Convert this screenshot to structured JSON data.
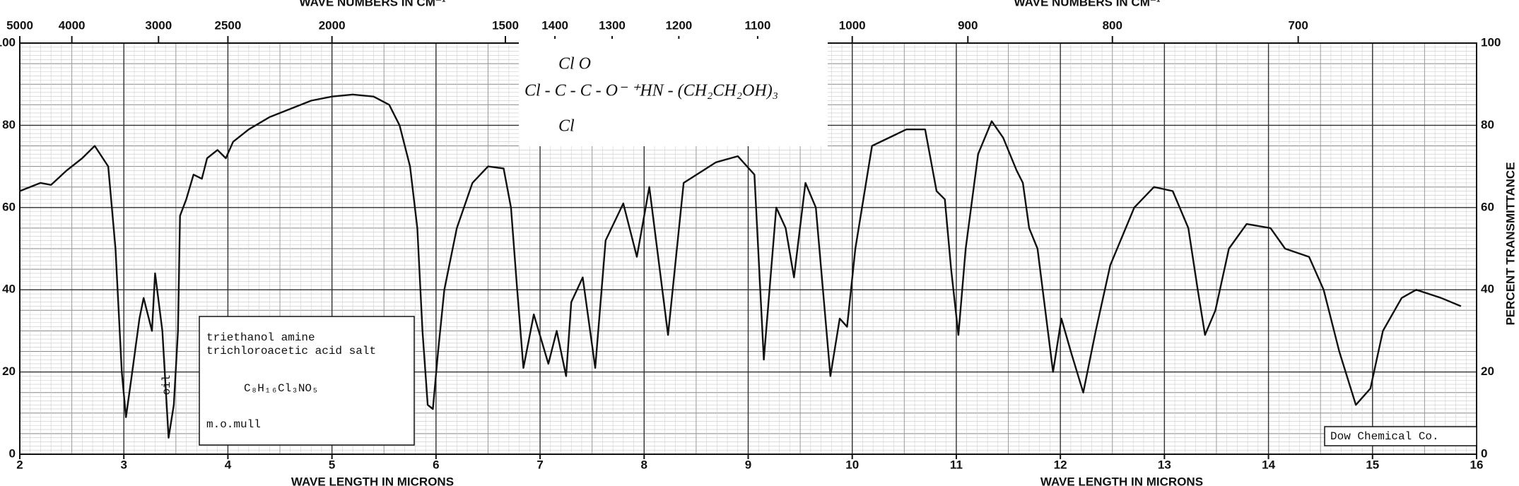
{
  "chart_data": {
    "type": "line",
    "x_label": "WAVE LENGTH IN MICRONS",
    "x2_label": "WAVE NUMBERS IN CM⁻¹",
    "y_label": "PERCENT TRANSMITTANCE",
    "xlim": [
      2,
      16
    ],
    "ylim": [
      0,
      100
    ],
    "xticks": [
      2,
      3,
      4,
      5,
      6,
      7,
      8,
      9,
      10,
      11,
      12,
      13,
      14,
      15,
      16
    ],
    "yticks": [
      0,
      20,
      40,
      60,
      80,
      100
    ],
    "x2ticks": [
      5000,
      4000,
      3000,
      2500,
      2000,
      1500,
      1400,
      1300,
      1200,
      1100,
      1000,
      900,
      800,
      700
    ],
    "grid": true,
    "color": "#111111",
    "x": [
      2.0,
      2.2,
      2.3,
      2.45,
      2.6,
      2.72,
      2.85,
      2.92,
      2.98,
      3.02,
      3.07,
      3.15,
      3.19,
      3.27,
      3.3,
      3.37,
      3.43,
      3.48,
      3.52,
      3.54,
      3.6,
      3.67,
      3.75,
      3.8,
      3.9,
      3.98,
      4.05,
      4.2,
      4.4,
      4.6,
      4.8,
      5.0,
      5.2,
      5.4,
      5.55,
      5.65,
      5.75,
      5.82,
      5.87,
      5.92,
      5.97,
      6.02,
      6.08,
      6.2,
      6.35,
      6.5,
      6.65,
      6.72,
      6.78,
      6.84,
      6.94,
      7.08,
      7.16,
      7.25,
      7.3,
      7.41,
      7.53,
      7.63,
      7.8,
      7.93,
      8.05,
      8.23,
      8.38,
      8.69,
      8.9,
      9.06,
      9.15,
      9.27,
      9.36,
      9.44,
      9.55,
      9.65,
      9.79,
      9.88,
      9.95,
      10.03,
      10.19,
      10.52,
      10.7,
      10.81,
      10.89,
      10.95,
      11.02,
      11.09,
      11.21,
      11.34,
      11.45,
      11.58,
      11.64,
      11.7,
      11.78,
      11.93,
      12.01,
      12.1,
      12.22,
      12.34,
      12.48,
      12.71,
      12.9,
      13.08,
      13.23,
      13.32,
      13.39,
      13.49,
      13.62,
      13.79,
      14.02,
      14.16,
      14.39,
      14.53,
      14.68,
      14.84,
      14.98,
      15.1,
      15.28,
      15.42,
      15.66,
      15.85
    ],
    "values": [
      64,
      66,
      65.5,
      69,
      72,
      75,
      70,
      50,
      20,
      9,
      18,
      33,
      38,
      30,
      44,
      30,
      4,
      12,
      30,
      58,
      62,
      68,
      67,
      72,
      74,
      72,
      76,
      79,
      82,
      84,
      86,
      87,
      87.5,
      87,
      85,
      80,
      70,
      55,
      30,
      12,
      11,
      25,
      40,
      55,
      66,
      70,
      69.5,
      60,
      40,
      21,
      34,
      22,
      30,
      19,
      37,
      43,
      21,
      52,
      61,
      48,
      65,
      29,
      66,
      71,
      72.5,
      68,
      23,
      60,
      55,
      43,
      66,
      60,
      19,
      33,
      31,
      50,
      75,
      79,
      79,
      64,
      62,
      45,
      29,
      50,
      73,
      81,
      77,
      69,
      66,
      55,
      50,
      20,
      33,
      25,
      15,
      30,
      46,
      60,
      65,
      64,
      55,
      40,
      29,
      35,
      50,
      56,
      55,
      50,
      48,
      40,
      25,
      12,
      16,
      30,
      38,
      40,
      38,
      36
    ],
    "annotations": {
      "formula": [
        "Cl   O",
        "Cl - C - C - O⁻  ⁺HN - (CH₂CH₂OH)₃",
        "Cl"
      ],
      "compound": [
        "triethanol amine",
        "trichloroacetic acid salt"
      ],
      "molecular_formula": "C₈H₁₆Cl₃NO₅",
      "sample": "m.o.mull",
      "solvent_band": "oil",
      "source": "Dow Chemical Co."
    }
  }
}
